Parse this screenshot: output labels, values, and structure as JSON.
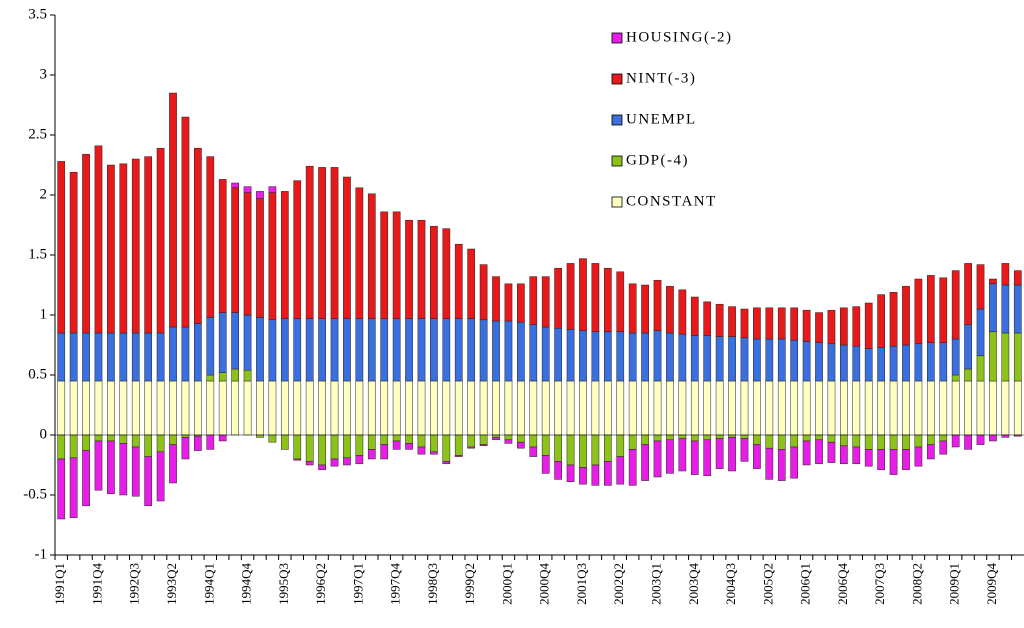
{
  "chart_data": {
    "type": "stacked-bar",
    "categories": [
      "1991Q1",
      null,
      null,
      "1991Q4",
      null,
      null,
      "1992Q3",
      null,
      null,
      "1993Q2",
      null,
      null,
      "1994Q1",
      null,
      null,
      "1994Q4",
      null,
      null,
      "1995Q3",
      null,
      null,
      "1996Q2",
      null,
      null,
      "1997Q1",
      null,
      null,
      "1997Q4",
      null,
      null,
      "1998Q3",
      null,
      null,
      "1999Q2",
      null,
      null,
      "2000Q1",
      null,
      null,
      "2000Q4",
      null,
      null,
      "2001Q3",
      null,
      null,
      "2002Q2",
      null,
      null,
      "2003Q1",
      null,
      null,
      "2003Q4",
      null,
      null,
      "2004Q3",
      null,
      null,
      "2005Q2",
      null,
      null,
      "2006Q1",
      null,
      null,
      "2006Q4",
      null,
      null,
      "2007Q3",
      null,
      null,
      "2008Q2",
      null,
      null,
      "2009Q1",
      null,
      null,
      "2009Q4",
      null,
      null
    ],
    "series": [
      {
        "name": "CONSTANT",
        "color": "#ffffc0",
        "values": [
          0.45,
          0.45,
          0.45,
          0.45,
          0.45,
          0.45,
          0.45,
          0.45,
          0.45,
          0.45,
          0.45,
          0.45,
          0.45,
          0.45,
          0.45,
          0.45,
          0.45,
          0.45,
          0.45,
          0.45,
          0.45,
          0.45,
          0.45,
          0.45,
          0.45,
          0.45,
          0.45,
          0.45,
          0.45,
          0.45,
          0.45,
          0.45,
          0.45,
          0.45,
          0.45,
          0.45,
          0.45,
          0.45,
          0.45,
          0.45,
          0.45,
          0.45,
          0.45,
          0.45,
          0.45,
          0.45,
          0.45,
          0.45,
          0.45,
          0.45,
          0.45,
          0.45,
          0.45,
          0.45,
          0.45,
          0.45,
          0.45,
          0.45,
          0.45,
          0.45,
          0.45,
          0.45,
          0.45,
          0.45,
          0.45,
          0.45,
          0.45,
          0.45,
          0.45,
          0.45,
          0.45,
          0.45,
          0.45,
          0.45,
          0.45,
          0.45,
          0.45,
          0.45
        ]
      },
      {
        "name": "GDP(-4)",
        "color": "#8cc21a",
        "values": [
          -0.2,
          -0.19,
          -0.13,
          -0.05,
          -0.05,
          -0.07,
          -0.1,
          -0.18,
          -0.14,
          -0.08,
          -0.02,
          -0.01,
          0.05,
          0.07,
          0.1,
          0.09,
          -0.02,
          -0.06,
          -0.12,
          -0.2,
          -0.22,
          -0.25,
          -0.2,
          -0.19,
          -0.17,
          -0.12,
          -0.08,
          -0.05,
          -0.07,
          -0.1,
          -0.14,
          -0.22,
          -0.17,
          -0.1,
          -0.08,
          -0.02,
          -0.04,
          -0.06,
          -0.1,
          -0.17,
          -0.22,
          -0.25,
          -0.27,
          -0.25,
          -0.22,
          -0.18,
          -0.12,
          -0.08,
          -0.05,
          -0.04,
          -0.03,
          -0.05,
          -0.04,
          -0.03,
          -0.02,
          -0.03,
          -0.08,
          -0.11,
          -0.12,
          -0.1,
          -0.05,
          -0.04,
          -0.06,
          -0.09,
          -0.1,
          -0.12,
          -0.12,
          -0.12,
          -0.12,
          -0.1,
          -0.08,
          -0.05,
          0.05,
          0.1,
          0.21,
          0.41,
          0.4,
          0.4
        ]
      },
      {
        "name": "UNEMPL",
        "color": "#3a6fe0",
        "values": [
          0.4,
          0.4,
          0.4,
          0.4,
          0.4,
          0.4,
          0.4,
          0.4,
          0.4,
          0.45,
          0.45,
          0.48,
          0.48,
          0.5,
          0.47,
          0.46,
          0.53,
          0.51,
          0.52,
          0.52,
          0.52,
          0.52,
          0.52,
          0.52,
          0.52,
          0.52,
          0.52,
          0.52,
          0.52,
          0.52,
          0.52,
          0.52,
          0.52,
          0.52,
          0.51,
          0.5,
          0.5,
          0.49,
          0.47,
          0.45,
          0.44,
          0.43,
          0.42,
          0.41,
          0.41,
          0.41,
          0.4,
          0.4,
          0.42,
          0.4,
          0.39,
          0.38,
          0.38,
          0.37,
          0.37,
          0.36,
          0.35,
          0.35,
          0.35,
          0.34,
          0.33,
          0.32,
          0.31,
          0.3,
          0.29,
          0.27,
          0.28,
          0.29,
          0.3,
          0.31,
          0.32,
          0.32,
          0.3,
          0.37,
          0.39,
          0.4,
          0.4,
          0.4
        ]
      },
      {
        "name": "NINT(-3)",
        "color": "#e8191b",
        "values": [
          1.43,
          1.34,
          1.49,
          1.56,
          1.4,
          1.41,
          1.45,
          1.47,
          1.54,
          1.95,
          1.75,
          1.46,
          1.34,
          1.11,
          1.04,
          1.02,
          0.99,
          1.06,
          1.06,
          1.15,
          1.27,
          1.26,
          1.26,
          1.18,
          1.09,
          1.04,
          0.89,
          0.89,
          0.82,
          0.82,
          0.77,
          0.75,
          0.62,
          0.58,
          0.46,
          0.37,
          0.31,
          0.32,
          0.4,
          0.42,
          0.5,
          0.55,
          0.6,
          0.57,
          0.53,
          0.5,
          0.41,
          0.4,
          0.42,
          0.39,
          0.37,
          0.32,
          0.28,
          0.27,
          0.25,
          0.24,
          0.26,
          0.26,
          0.26,
          0.27,
          0.26,
          0.25,
          0.28,
          0.31,
          0.33,
          0.38,
          0.44,
          0.45,
          0.49,
          0.54,
          0.56,
          0.54,
          0.57,
          0.51,
          0.37,
          0.04,
          0.18,
          0.12
        ]
      },
      {
        "name": "HOUSING(-2)",
        "color": "#e61ee6",
        "values": [
          -0.5,
          -0.5,
          -0.46,
          -0.41,
          -0.44,
          -0.43,
          -0.41,
          -0.41,
          -0.41,
          -0.32,
          -0.18,
          -0.12,
          -0.12,
          -0.05,
          0.04,
          0.05,
          0.06,
          0.05,
          0,
          -0.01,
          -0.03,
          -0.04,
          -0.06,
          -0.06,
          -0.07,
          -0.08,
          -0.12,
          -0.07,
          -0.05,
          -0.06,
          -0.02,
          -0.02,
          -0.01,
          -0.01,
          -0.01,
          -0.02,
          -0.03,
          -0.05,
          -0.08,
          -0.15,
          -0.15,
          -0.14,
          -0.14,
          -0.17,
          -0.2,
          -0.23,
          -0.3,
          -0.3,
          -0.3,
          -0.28,
          -0.27,
          -0.28,
          -0.3,
          -0.25,
          -0.28,
          -0.19,
          -0.2,
          -0.26,
          -0.26,
          -0.26,
          -0.2,
          -0.2,
          -0.17,
          -0.15,
          -0.14,
          -0.14,
          -0.17,
          -0.21,
          -0.17,
          -0.16,
          -0.12,
          -0.11,
          -0.1,
          -0.12,
          -0.08,
          -0.05,
          -0.02,
          -0.01
        ]
      }
    ],
    "ylim": [
      -1,
      3.5
    ],
    "yticks": [
      -1,
      -0.5,
      0,
      0.5,
      1,
      1.5,
      2,
      2.5,
      3,
      3.5
    ],
    "grid": false,
    "legend": "top-right"
  }
}
